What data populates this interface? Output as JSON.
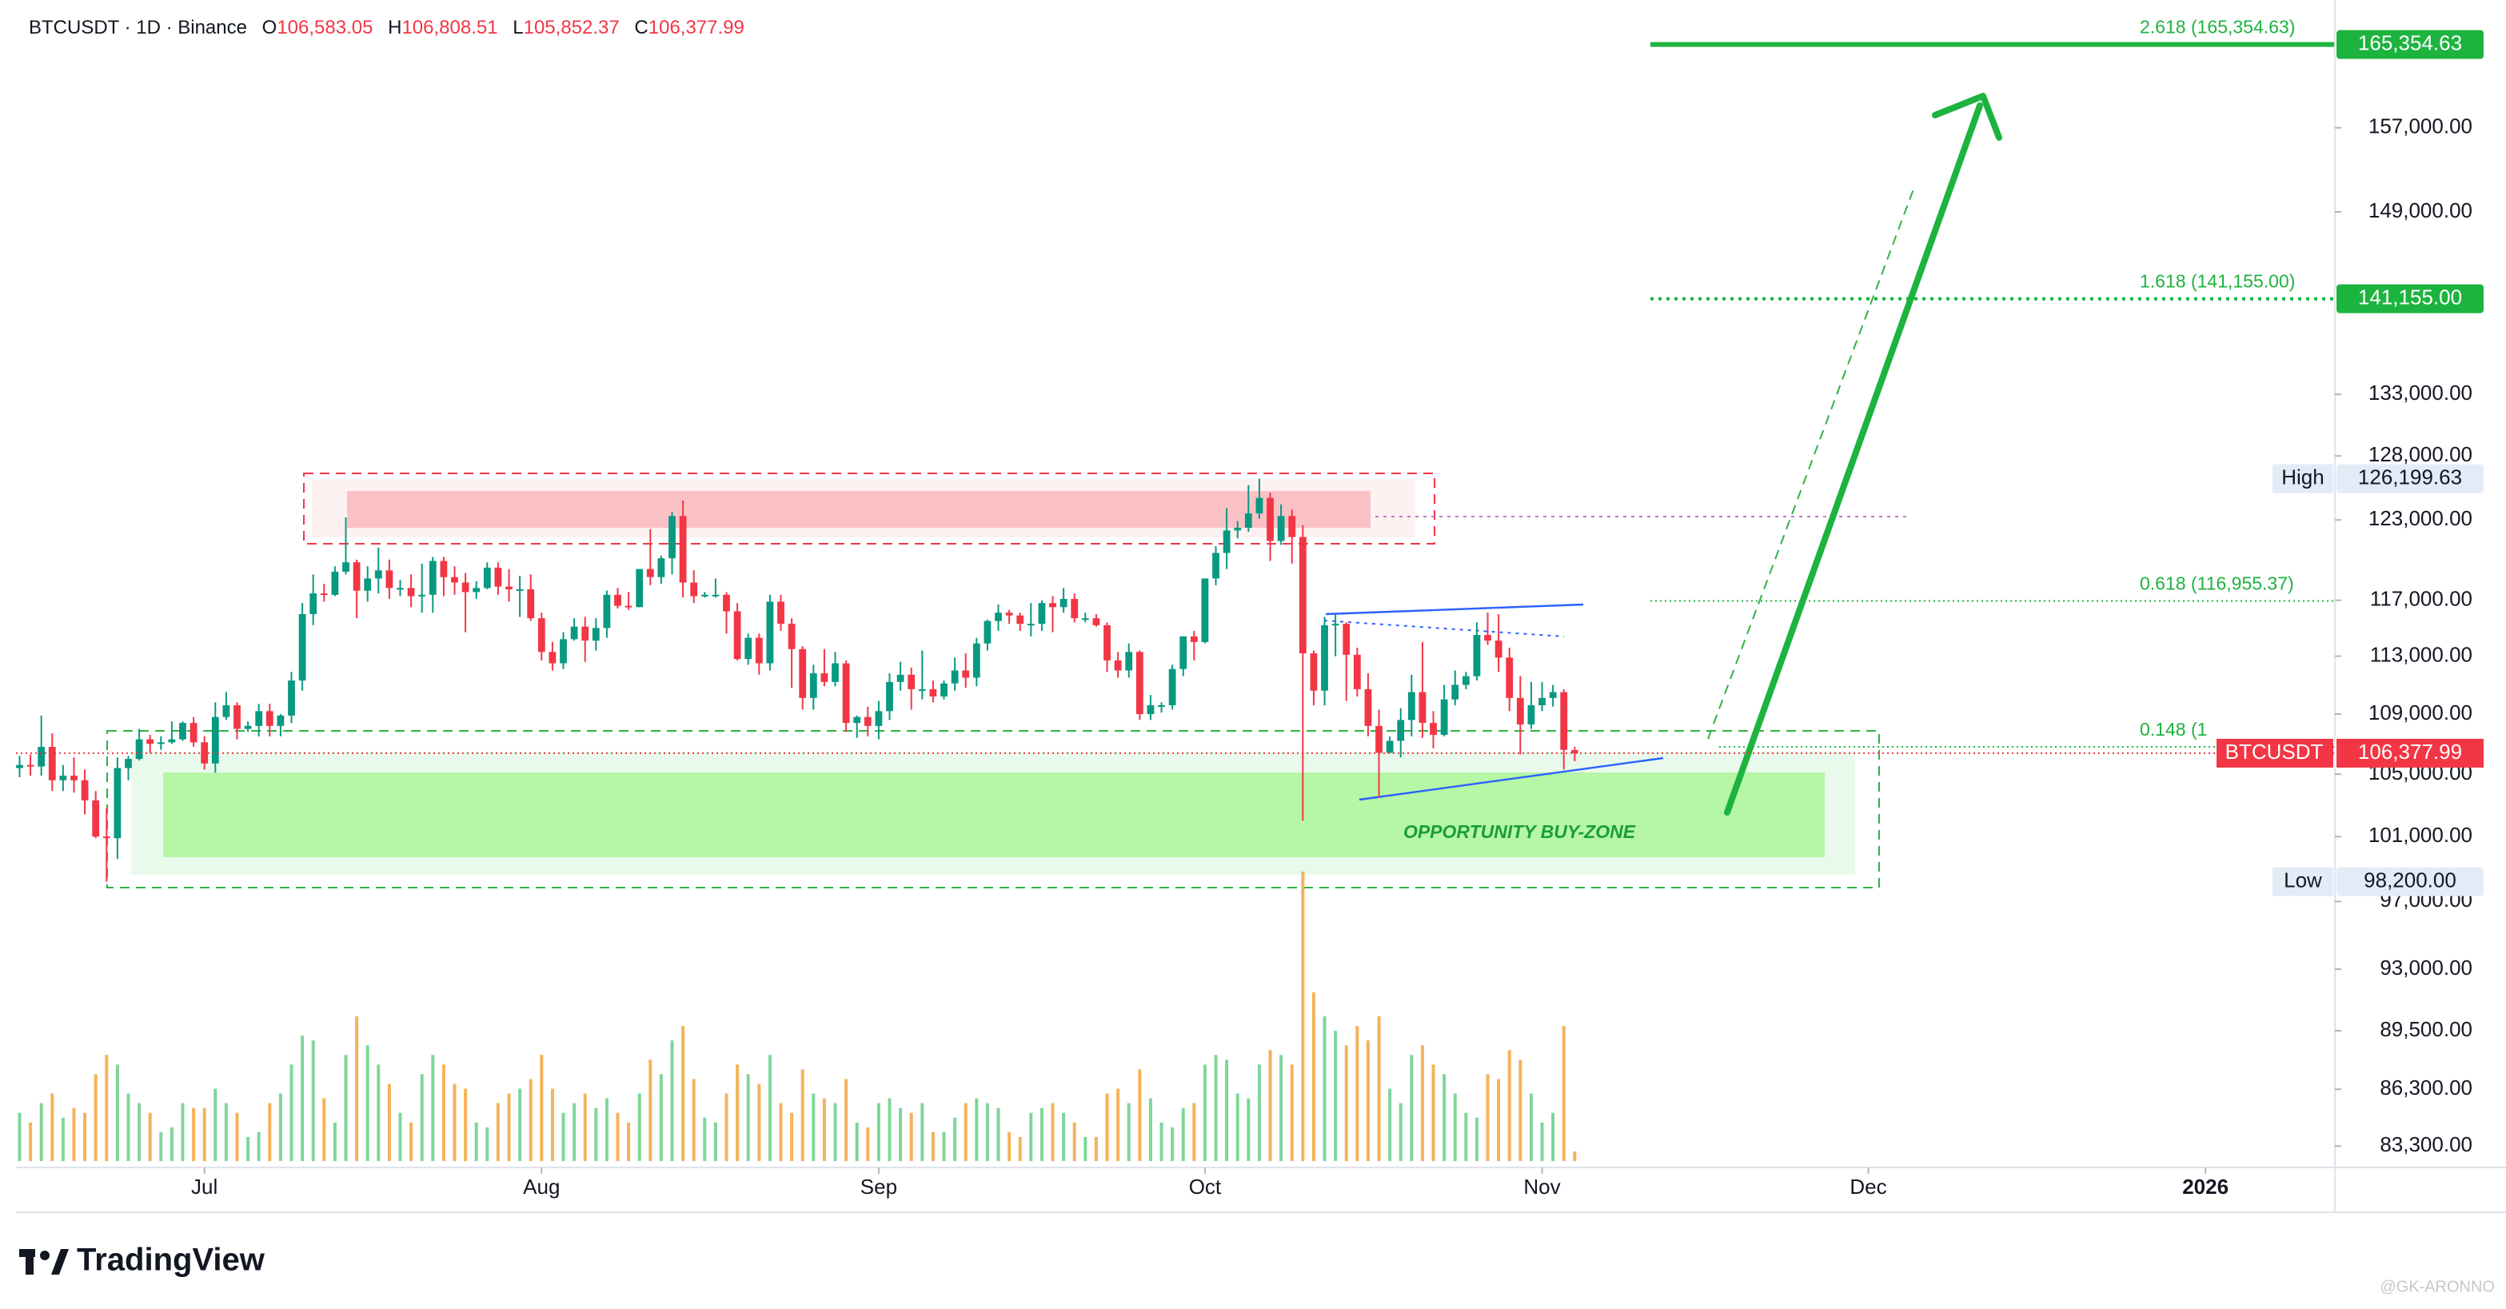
{
  "header": {
    "symbol": "BTCUSDT · 1D · Binance",
    "ohlc": [
      {
        "key": "O",
        "text": "106,583.05"
      },
      {
        "key": "H",
        "text": "106,808.51"
      },
      {
        "key": "L",
        "text": "105,852.37"
      },
      {
        "key": "C",
        "text": "106,377.99"
      }
    ]
  },
  "chart_data": {
    "type": "candlestick",
    "log_scale": true,
    "grid": false,
    "xlim": [
      -1.8,
      212.9
    ],
    "ylim": [
      82200,
      170000
    ],
    "xticks": [
      {
        "value": 17,
        "label": "Jul"
      },
      {
        "value": 48,
        "label": "Aug"
      },
      {
        "value": 79,
        "label": "Sep"
      },
      {
        "value": 109,
        "label": "Oct"
      },
      {
        "value": 140,
        "label": "Nov"
      },
      {
        "value": 170,
        "label": "Dec"
      },
      {
        "value": 201,
        "label": "2026"
      }
    ],
    "yticks": [
      {
        "value": 83300,
        "label": "83,300.00"
      },
      {
        "value": 86300,
        "label": "86,300.00"
      },
      {
        "value": 89500,
        "label": "89,500.00"
      },
      {
        "value": 93000,
        "label": "93,000.00"
      },
      {
        "value": 97000,
        "label": "97,000.00"
      },
      {
        "value": 101000,
        "label": "101,000.00"
      },
      {
        "value": 105000,
        "label": "105,000.00"
      },
      {
        "value": 109000,
        "label": "109,000.00"
      },
      {
        "value": 113000,
        "label": "113,000.00"
      },
      {
        "value": 117000,
        "label": "117,000.00"
      },
      {
        "value": 123000,
        "label": "123,000.00"
      },
      {
        "value": 128000,
        "label": "128,000.00"
      },
      {
        "value": 133000,
        "label": "133,000.00"
      },
      {
        "value": 149000,
        "label": "149,000.00"
      },
      {
        "value": 157000,
        "label": "157,000.00"
      }
    ],
    "up_color": "#089981",
    "down_color": "#f23645",
    "open": [
      105400,
      105600,
      105500,
      106800,
      104600,
      104900,
      104600,
      103300,
      101000,
      100900,
      105400,
      106000,
      107300,
      107000,
      107100,
      107300,
      108400,
      107100,
      105700,
      108800,
      109600,
      108000,
      108200,
      109200,
      108200,
      108900,
      111300,
      116000,
      117500,
      117400,
      119100,
      119800,
      117700,
      118600,
      119200,
      117900,
      117900,
      117300,
      117400,
      119900,
      118700,
      118300,
      117600,
      117900,
      119400,
      118000,
      117800,
      117800,
      115700,
      113300,
      112500,
      114200,
      115100,
      114100,
      115000,
      117400,
      116600,
      116500,
      119300,
      118700,
      120100,
      123300,
      118300,
      117300,
      117400,
      117400,
      116200,
      112800,
      114300,
      112500,
      116900,
      115300,
      113500,
      110100,
      111800,
      111200,
      112500,
      108400,
      108800,
      108200,
      109200,
      111200,
      111700,
      110700,
      110700,
      110200,
      111100,
      112000,
      111500,
      113900,
      115500,
      116100,
      115900,
      115300,
      115300,
      116800,
      116500,
      117100,
      115700,
      115700,
      115200,
      112700,
      112000,
      113300,
      109000,
      109600,
      109600,
      112100,
      114400,
      114000,
      118600,
      120500,
      122200,
      122400,
      123500,
      124700,
      121400,
      123300,
      121700,
      113200,
      110600,
      115200,
      115300,
      113100,
      110700,
      108200,
      106400,
      107200,
      108600,
      110500,
      108400,
      107600,
      110000,
      111000,
      111600,
      114500,
      114100,
      112900,
      110100,
      108300,
      109600,
      110100,
      110500,
      106583.05
    ],
    "high": [
      106200,
      106300,
      108900,
      107700,
      105600,
      106100,
      105300,
      103900,
      102800,
      106100,
      106200,
      108000,
      107600,
      107500,
      108500,
      108500,
      108800,
      107500,
      109800,
      110500,
      109800,
      108500,
      109700,
      109700,
      109000,
      111900,
      116800,
      118900,
      118200,
      119500,
      123200,
      120000,
      119500,
      120900,
      120000,
      118500,
      118900,
      119700,
      120200,
      120200,
      119500,
      119000,
      118400,
      119800,
      119800,
      119300,
      118800,
      118900,
      116100,
      114000,
      114700,
      115700,
      115800,
      115700,
      117700,
      117900,
      117600,
      119300,
      122300,
      120300,
      123600,
      124500,
      119200,
      117600,
      118600,
      117600,
      116800,
      114600,
      114600,
      117400,
      117400,
      115700,
      113700,
      112400,
      113500,
      113300,
      112700,
      108900,
      109500,
      109900,
      111800,
      112600,
      112200,
      113400,
      111300,
      111300,
      112900,
      113200,
      114300,
      115600,
      116700,
      116300,
      116100,
      116800,
      117000,
      117300,
      117900,
      117500,
      116100,
      116000,
      115400,
      113300,
      113900,
      113400,
      110300,
      109800,
      112400,
      114400,
      114800,
      118600,
      121000,
      123900,
      122900,
      125700,
      126199.63,
      125100,
      124200,
      123800,
      122600,
      113400,
      115800,
      116000,
      115400,
      113600,
      111800,
      109300,
      107500,
      109400,
      111700,
      114000,
      109200,
      111000,
      112000,
      111900,
      115400,
      116100,
      116000,
      113600,
      111600,
      111200,
      111200,
      111000,
      110700,
      106808.51
    ],
    "low": [
      104800,
      104900,
      104900,
      103900,
      103900,
      103800,
      102400,
      100900,
      98200,
      99600,
      104600,
      105900,
      106400,
      106600,
      107000,
      107200,
      106800,
      105300,
      105100,
      108600,
      107300,
      107800,
      107500,
      107500,
      107500,
      108400,
      110600,
      115200,
      116900,
      117300,
      118900,
      115700,
      116900,
      117500,
      117100,
      117300,
      116500,
      116100,
      116100,
      117300,
      117400,
      114700,
      117100,
      117800,
      117400,
      116900,
      115800,
      115500,
      112700,
      112000,
      112100,
      114100,
      112600,
      113400,
      114300,
      116400,
      116300,
      116500,
      118100,
      118200,
      118900,
      117200,
      116800,
      117200,
      117200,
      114600,
      112700,
      112400,
      111700,
      112000,
      114800,
      110800,
      109300,
      109300,
      110900,
      110900,
      107800,
      107400,
      107500,
      107300,
      108600,
      110600,
      109300,
      110000,
      109800,
      110000,
      110600,
      110800,
      110900,
      113400,
      114800,
      115300,
      114800,
      114400,
      114800,
      114700,
      116100,
      115400,
      115400,
      115100,
      111900,
      111500,
      111500,
      108600,
      108600,
      109100,
      109300,
      111600,
      112700,
      113900,
      118100,
      119300,
      121600,
      122100,
      123100,
      119900,
      121100,
      119700,
      102000,
      109600,
      109600,
      113000,
      109900,
      110200,
      107500,
      103500,
      106400,
      106100,
      107500,
      107400,
      106700,
      107500,
      109600,
      110700,
      111300,
      113800,
      111900,
      109200,
      106300,
      108000,
      109200,
      109500,
      105300,
      105852.37
    ],
    "close": [
      105600,
      105500,
      106800,
      104600,
      104900,
      104600,
      103300,
      101000,
      100900,
      105400,
      106000,
      107300,
      107000,
      107100,
      107300,
      108400,
      107100,
      105700,
      108800,
      109600,
      108000,
      108200,
      109200,
      108200,
      108900,
      111300,
      116000,
      117500,
      117400,
      119100,
      119800,
      117700,
      118600,
      119200,
      117900,
      117900,
      117300,
      117400,
      119900,
      118700,
      118300,
      117600,
      117900,
      119400,
      118000,
      117800,
      117800,
      115700,
      113300,
      112500,
      114200,
      115100,
      114100,
      115000,
      117400,
      116600,
      116500,
      119300,
      118700,
      120100,
      123300,
      118300,
      117300,
      117400,
      117400,
      116200,
      112800,
      114300,
      112500,
      116900,
      115300,
      113500,
      110100,
      111800,
      111200,
      112500,
      108400,
      108800,
      108200,
      109200,
      111200,
      111700,
      110700,
      110700,
      110200,
      111100,
      112000,
      111500,
      113900,
      115500,
      116100,
      115900,
      115300,
      115300,
      116800,
      116500,
      117100,
      115700,
      115700,
      115200,
      112700,
      112000,
      113300,
      109000,
      109600,
      109600,
      112100,
      114400,
      114000,
      118600,
      120500,
      122200,
      122400,
      123500,
      124700,
      121400,
      123300,
      121700,
      113200,
      110600,
      115200,
      115300,
      113100,
      110700,
      108200,
      106400,
      107200,
      108600,
      110500,
      108400,
      107600,
      110000,
      111000,
      111600,
      114500,
      114100,
      112900,
      110100,
      108300,
      109600,
      110100,
      110500,
      106600,
      106377.99
    ],
    "volume": {
      "up_color": "#7fd69a",
      "down_color": "#f6b25a",
      "values": [
        10,
        8,
        12,
        14,
        9,
        11,
        10,
        18,
        22,
        20,
        14,
        12,
        10,
        6,
        7,
        12,
        11,
        11,
        15,
        12,
        10,
        5,
        6,
        12,
        14,
        20,
        26,
        25,
        13,
        8,
        22,
        30,
        24,
        20,
        16,
        10,
        8,
        18,
        22,
        20,
        16,
        15,
        8,
        7,
        12,
        14,
        15,
        17,
        22,
        15,
        10,
        12,
        14,
        11,
        13,
        10,
        8,
        14,
        21,
        18,
        25,
        28,
        17,
        9,
        8,
        14,
        20,
        18,
        16,
        22,
        12,
        10,
        19,
        14,
        13,
        12,
        17,
        8,
        7,
        12,
        13,
        11,
        10,
        12,
        6,
        6,
        9,
        12,
        13,
        12,
        11,
        6,
        5,
        10,
        11,
        12,
        10,
        8,
        5,
        5,
        14,
        15,
        12,
        19,
        13,
        8,
        7,
        11,
        12,
        20,
        22,
        21,
        14,
        13,
        20,
        23,
        22,
        20,
        60,
        35,
        30,
        27,
        24,
        28,
        25,
        30,
        15,
        12,
        22,
        24,
        20,
        18,
        14,
        10,
        9,
        18,
        17,
        23,
        21,
        14,
        8,
        10,
        28,
        2
      ]
    },
    "fib_levels": [
      {
        "label": "2.618 (165,354.63)",
        "value": 165354.63,
        "color": "#1db33f"
      },
      {
        "label": "1.618 (141,155.00)",
        "value": 141155,
        "color": "#1db33f"
      },
      {
        "label": "0.618 (116,955.37)",
        "value": 116955.37,
        "color": "#1db33f"
      },
      {
        "label": "0.148 (1",
        "value": 106800,
        "color": "#1db33f"
      }
    ],
    "price_badges": [
      {
        "label": "165,354.63",
        "value": 165354.63
      },
      {
        "label": "141,155.00",
        "value": 141155
      }
    ],
    "high_badge": {
      "name": "High",
      "label": "126,199.63",
      "value": 126199.63
    },
    "low_badge": {
      "name": "Low",
      "label": "98,200.00",
      "value": 98200
    },
    "last_badge": {
      "name": "BTCUSDT",
      "label": "106,377.99"
    },
    "annotation": "OPPORTUNITY BUY-ZONE"
  },
  "footer": {
    "logo": "TradingView",
    "watermark": "@GK-ARONNO"
  }
}
